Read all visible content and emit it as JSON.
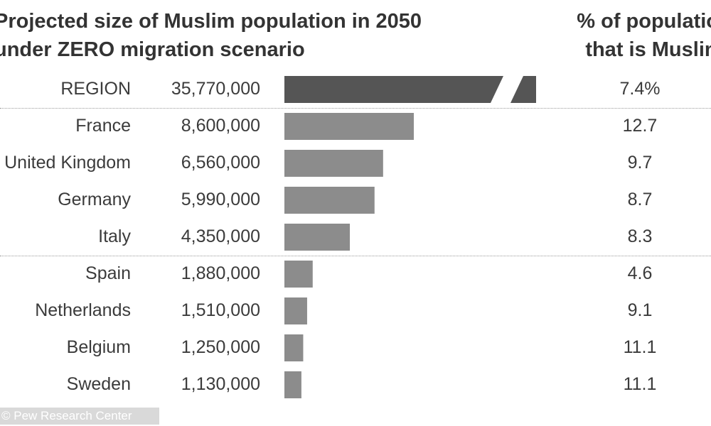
{
  "chart_data": {
    "type": "bar",
    "title_line1": "Projected size of Muslim population in 2050",
    "title_line2": "under ZERO migration scenario",
    "pct_title_line1": "% of population",
    "pct_title_line2": "that is Muslim",
    "categories": [
      "REGION",
      "France",
      "United Kingdom",
      "Germany",
      "Italy",
      "Spain",
      "Netherlands",
      "Belgium",
      "Sweden"
    ],
    "value_labels": [
      "35,770,000",
      "8,600,000",
      "6,560,000",
      "5,990,000",
      "4,350,000",
      "1,880,000",
      "1,510,000",
      "1,250,000",
      "1,130,000"
    ],
    "values": [
      35770000,
      8600000,
      6560000,
      5990000,
      4350000,
      1880000,
      1510000,
      1250000,
      1130000
    ],
    "pct_labels": [
      "7.4%",
      "12.7",
      "9.7",
      "8.7",
      "8.3",
      "4.6",
      "9.1",
      "11.1",
      "11.1"
    ],
    "pct_values": [
      7.4,
      12.7,
      9.7,
      8.7,
      8.3,
      4.6,
      9.1,
      11.1,
      11.1
    ],
    "axis_break_on_first_bar": true,
    "colors": {
      "region_bar": "#555555",
      "country_bar": "#8c8c8c",
      "text": "#3b3b3b"
    },
    "source": "© Pew Research Center"
  }
}
